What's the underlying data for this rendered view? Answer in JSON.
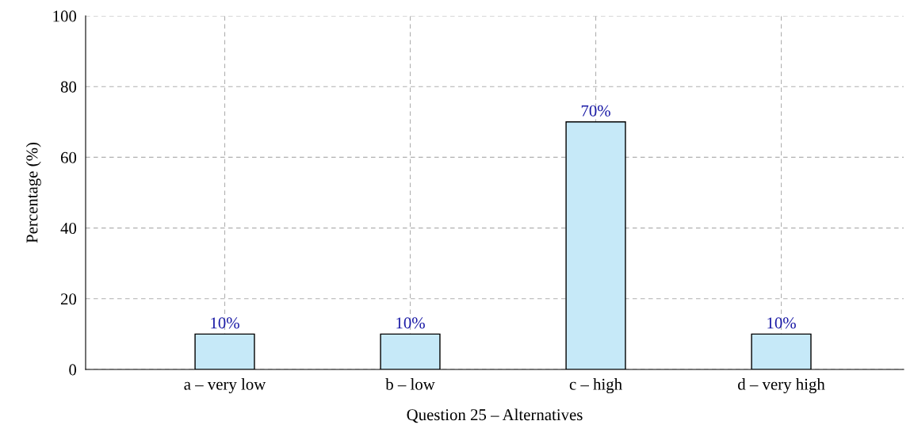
{
  "chart_data": {
    "type": "bar",
    "xlabel": "Question 25 – Alternatives",
    "ylabel": "Percentage (%)",
    "categories": [
      "a – very low",
      "b – low",
      "c – high",
      "d – very high"
    ],
    "values": [
      10,
      10,
      70,
      10
    ],
    "value_labels": [
      "10%",
      "10%",
      "70%",
      "10%"
    ],
    "color": "#c6e9f8",
    "ylim": [
      0,
      100
    ],
    "yticks": [
      0,
      20,
      40,
      60,
      80,
      100
    ],
    "grid": true
  }
}
